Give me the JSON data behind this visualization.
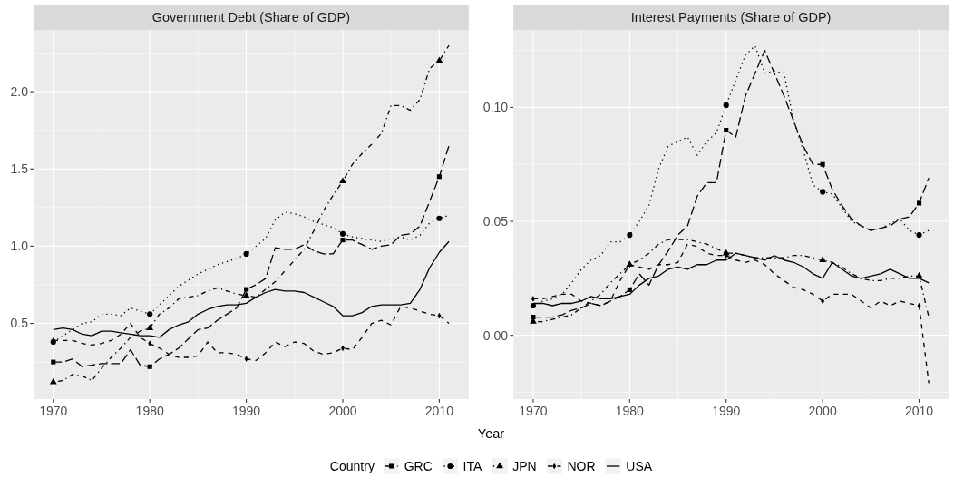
{
  "chart_data": [
    {
      "type": "line",
      "title": "Government Debt (Share of GDP)",
      "xlabel": "Year",
      "legend": "bottom",
      "legend_title": "Country",
      "grid": true,
      "x": [
        1970,
        1971,
        1972,
        1973,
        1974,
        1975,
        1976,
        1977,
        1978,
        1979,
        1980,
        1981,
        1982,
        1983,
        1984,
        1985,
        1986,
        1987,
        1988,
        1989,
        1990,
        1991,
        1992,
        1993,
        1994,
        1995,
        1996,
        1997,
        1998,
        1999,
        2000,
        2001,
        2002,
        2003,
        2004,
        2005,
        2006,
        2007,
        2008,
        2009,
        2010,
        2011
      ],
      "xlim": [
        1967.95,
        2013.05
      ],
      "xticks": [
        1970,
        1980,
        1990,
        2000,
        2010
      ],
      "ylim": [
        0.01,
        2.4
      ],
      "yticks": [
        0.5,
        {
          "value": 1,
          "label": "1.0"
        },
        1.5,
        {
          "value": 2,
          "label": "2.0"
        }
      ],
      "series": [
        {
          "name": "GRC",
          "color": "#000000",
          "line_style": "longdash",
          "values": [
            0.25,
            0.25,
            0.27,
            0.22,
            0.23,
            0.24,
            0.24,
            0.24,
            0.33,
            0.23,
            0.22,
            0.27,
            0.3,
            0.34,
            0.4,
            0.46,
            0.47,
            0.52,
            0.56,
            0.6,
            0.72,
            0.75,
            0.79,
            0.99,
            0.98,
            0.98,
            1.01,
            0.97,
            0.95,
            0.95,
            1.04,
            1.04,
            1.01,
            0.98,
            1.0,
            1.01,
            1.07,
            1.08,
            1.13,
            1.29,
            1.45,
            1.65
          ]
        },
        {
          "name": "ITA",
          "color": "#000000",
          "line_style": "dotted",
          "values": [
            0.38,
            0.42,
            0.46,
            0.5,
            0.51,
            0.56,
            0.56,
            0.55,
            0.6,
            0.58,
            0.56,
            0.62,
            0.68,
            0.74,
            0.78,
            0.82,
            0.85,
            0.88,
            0.9,
            0.92,
            0.95,
            1.0,
            1.05,
            1.17,
            1.22,
            1.21,
            1.19,
            1.16,
            1.14,
            1.12,
            1.08,
            1.06,
            1.05,
            1.04,
            1.03,
            1.05,
            1.06,
            1.04,
            1.07,
            1.15,
            1.18,
            1.2
          ]
        },
        {
          "name": "JPN",
          "color": "#000000",
          "line_style": "dashdot",
          "values": [
            0.12,
            0.13,
            0.17,
            0.16,
            0.13,
            0.21,
            0.28,
            0.34,
            0.41,
            0.45,
            0.47,
            0.56,
            0.6,
            0.66,
            0.67,
            0.68,
            0.71,
            0.73,
            0.71,
            0.69,
            0.68,
            0.67,
            0.72,
            0.77,
            0.84,
            0.91,
            0.98,
            1.1,
            1.23,
            1.33,
            1.42,
            1.53,
            1.6,
            1.66,
            1.73,
            1.91,
            1.91,
            1.88,
            1.95,
            2.15,
            2.2,
            2.3
          ]
        },
        {
          "name": "NOR",
          "color": "#000000",
          "line_style": "dashed",
          "values": [
            0.39,
            0.39,
            0.39,
            0.37,
            0.36,
            0.37,
            0.39,
            0.43,
            0.5,
            0.41,
            0.37,
            0.34,
            0.3,
            0.28,
            0.28,
            0.29,
            0.38,
            0.31,
            0.31,
            0.3,
            0.27,
            0.26,
            0.31,
            0.38,
            0.35,
            0.38,
            0.37,
            0.32,
            0.3,
            0.31,
            0.34,
            0.33,
            0.41,
            0.5,
            0.52,
            0.49,
            0.61,
            0.6,
            0.58,
            0.56,
            0.55,
            0.5
          ]
        },
        {
          "name": "USA",
          "color": "#000000",
          "line_style": "solid",
          "values": [
            0.46,
            0.47,
            0.46,
            0.43,
            0.42,
            0.45,
            0.45,
            0.44,
            0.43,
            0.42,
            0.42,
            0.41,
            0.46,
            0.49,
            0.51,
            0.56,
            0.59,
            0.61,
            0.62,
            0.62,
            0.63,
            0.67,
            0.7,
            0.72,
            0.71,
            0.71,
            0.7,
            0.67,
            0.64,
            0.61,
            0.55,
            0.55,
            0.57,
            0.61,
            0.62,
            0.62,
            0.62,
            0.63,
            0.72,
            0.86,
            0.96,
            1.03
          ]
        },
        {
          "type": "scatter",
          "color": "#000000",
          "marker": "square",
          "x": [
            1970,
            1980,
            1990,
            2000,
            2010
          ],
          "values": [
            0.25,
            0.22,
            0.72,
            1.04,
            1.45
          ]
        },
        {
          "type": "scatter",
          "color": "#000000",
          "marker": "circle",
          "x": [
            1970,
            1980,
            1990,
            2000,
            2010
          ],
          "values": [
            0.38,
            0.56,
            0.95,
            1.08,
            1.18
          ]
        },
        {
          "type": "scatter",
          "color": "#000000",
          "marker": "triangle",
          "x": [
            1970,
            1980,
            1990,
            2000,
            2010
          ],
          "values": [
            0.12,
            0.47,
            0.68,
            1.42,
            2.2
          ]
        },
        {
          "type": "scatter",
          "color": "#000000",
          "marker": "diamond",
          "x": [
            1970,
            1980,
            1990,
            2000,
            2010
          ],
          "values": [
            0.39,
            0.37,
            0.27,
            0.34,
            0.55
          ]
        }
      ]
    },
    {
      "type": "line",
      "title": "Interest Payments (Share of GDP)",
      "grid": true,
      "x": [
        1970,
        1971,
        1972,
        1973,
        1974,
        1975,
        1976,
        1977,
        1978,
        1979,
        1980,
        1981,
        1982,
        1983,
        1984,
        1985,
        1986,
        1987,
        1988,
        1989,
        1990,
        1991,
        1992,
        1993,
        1994,
        1995,
        1996,
        1997,
        1998,
        1999,
        2000,
        2001,
        2002,
        2003,
        2004,
        2005,
        2006,
        2007,
        2008,
        2009,
        2010,
        2011
      ],
      "xlim": [
        1967.95,
        2013.05
      ],
      "xticks": [
        1970,
        1980,
        1990,
        2000,
        2010
      ],
      "ylim": [
        -0.028,
        0.134
      ],
      "yticks": [
        {
          "value": 0,
          "label": "0.00"
        },
        0.05,
        {
          "value": 0.1,
          "label": "0.10"
        }
      ],
      "series": [
        {
          "name": "GRC",
          "color": "#000000",
          "line_style": "longdash",
          "values": [
            0.008,
            0.008,
            0.008,
            0.009,
            0.011,
            0.012,
            0.014,
            0.013,
            0.015,
            0.017,
            0.02,
            0.027,
            0.022,
            0.031,
            0.037,
            0.044,
            0.048,
            0.061,
            0.067,
            0.067,
            0.09,
            0.087,
            0.105,
            0.115,
            0.125,
            0.115,
            0.105,
            0.094,
            0.083,
            0.075,
            0.075,
            0.064,
            0.057,
            0.051,
            0.048,
            0.046,
            0.047,
            0.048,
            0.051,
            0.052,
            0.058,
            0.069
          ]
        },
        {
          "name": "ITA",
          "color": "#000000",
          "line_style": "dotted",
          "values": [
            0.013,
            0.015,
            0.016,
            0.018,
            0.023,
            0.029,
            0.033,
            0.035,
            0.041,
            0.041,
            0.044,
            0.05,
            0.057,
            0.073,
            0.083,
            0.085,
            0.087,
            0.079,
            0.085,
            0.089,
            0.101,
            0.112,
            0.123,
            0.127,
            0.115,
            0.116,
            0.115,
            0.094,
            0.081,
            0.066,
            0.063,
            0.062,
            0.056,
            0.05,
            0.048,
            0.046,
            0.047,
            0.049,
            0.051,
            0.046,
            0.044,
            0.046
          ]
        },
        {
          "name": "JPN",
          "color": "#000000",
          "line_style": "dashdot",
          "values": [
            0.006,
            0.006,
            0.007,
            0.008,
            0.009,
            0.012,
            0.015,
            0.018,
            0.023,
            0.027,
            0.031,
            0.033,
            0.036,
            0.04,
            0.042,
            0.042,
            0.042,
            0.041,
            0.04,
            0.038,
            0.036,
            0.036,
            0.035,
            0.034,
            0.034,
            0.034,
            0.034,
            0.035,
            0.035,
            0.034,
            0.033,
            0.032,
            0.03,
            0.027,
            0.025,
            0.024,
            0.024,
            0.025,
            0.025,
            0.026,
            0.026,
            0.008
          ]
        },
        {
          "name": "NOR",
          "color": "#000000",
          "line_style": "dashed",
          "values": [
            0.016,
            0.016,
            0.017,
            0.018,
            0.018,
            0.015,
            0.014,
            0.013,
            0.015,
            0.024,
            0.031,
            0.03,
            0.029,
            0.031,
            0.031,
            0.032,
            0.04,
            0.039,
            0.036,
            0.035,
            0.035,
            0.033,
            0.032,
            0.033,
            0.031,
            0.027,
            0.024,
            0.021,
            0.02,
            0.018,
            0.015,
            0.018,
            0.018,
            0.018,
            0.015,
            0.012,
            0.015,
            0.013,
            0.015,
            0.014,
            0.013,
            -0.021
          ]
        },
        {
          "name": "USA",
          "color": "#000000",
          "line_style": "solid",
          "values": [
            0.014,
            0.014,
            0.013,
            0.014,
            0.014,
            0.015,
            0.017,
            0.016,
            0.016,
            0.017,
            0.018,
            0.022,
            0.025,
            0.026,
            0.029,
            0.03,
            0.029,
            0.031,
            0.031,
            0.033,
            0.033,
            0.036,
            0.035,
            0.034,
            0.033,
            0.035,
            0.033,
            0.032,
            0.03,
            0.027,
            0.025,
            0.032,
            0.029,
            0.026,
            0.025,
            0.026,
            0.027,
            0.029,
            0.027,
            0.025,
            0.025,
            0.023
          ]
        },
        {
          "type": "scatter",
          "name": "GRC",
          "color": "#000000",
          "marker": "square",
          "x": [
            1970,
            1980,
            1990,
            2000,
            2010
          ],
          "values": [
            0.008,
            0.02,
            0.09,
            0.075,
            0.058
          ]
        },
        {
          "type": "scatter",
          "name": "ITA",
          "color": "#000000",
          "marker": "circle",
          "x": [
            1970,
            1980,
            1990,
            2000,
            2010
          ],
          "values": [
            0.013,
            0.044,
            0.101,
            0.063,
            0.044
          ]
        },
        {
          "type": "scatter",
          "name": "JPN",
          "color": "#000000",
          "marker": "triangle",
          "x": [
            1970,
            1980,
            1990,
            2000,
            2010
          ],
          "values": [
            0.006,
            0.031,
            0.036,
            0.033,
            0.026
          ]
        },
        {
          "type": "scatter",
          "name": "NOR",
          "color": "#000000",
          "marker": "diamond",
          "x": [
            1970,
            1980,
            1990,
            2000,
            2010
          ],
          "values": [
            0.016,
            0.031,
            0.035,
            0.015,
            0.013
          ]
        }
      ]
    }
  ]
}
